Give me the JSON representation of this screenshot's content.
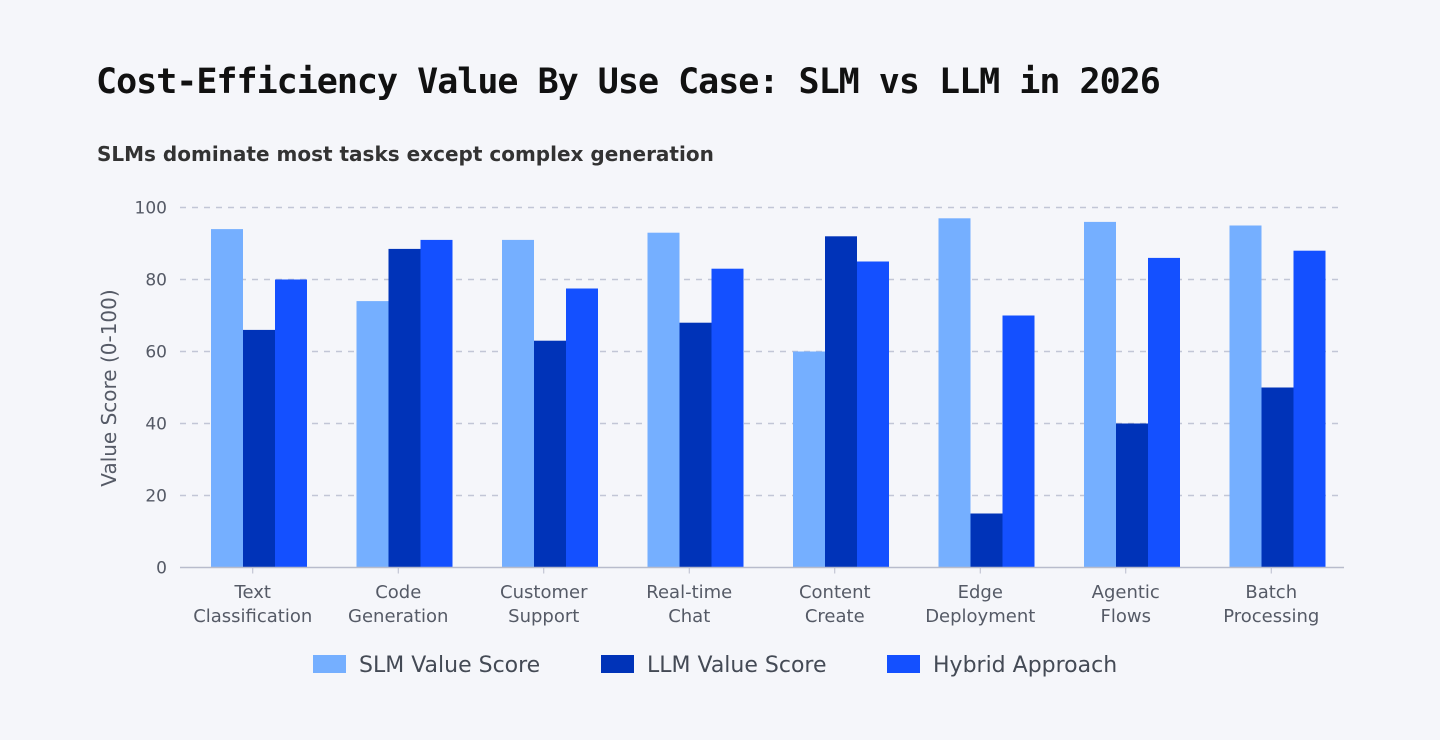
{
  "chart_data": {
    "type": "bar",
    "title": "Cost-Efficiency Value By Use Case: SLM vs LLM in 2026",
    "subtitle": "SLMs dominate most tasks except complex generation",
    "xlabel": "",
    "ylabel": "Value Score (0-100)",
    "ylim": [
      0,
      100
    ],
    "yticks": [
      0,
      20,
      40,
      60,
      80,
      100
    ],
    "grid": true,
    "legend": "bottom",
    "categories": [
      [
        "Text",
        "Classification"
      ],
      [
        "Code",
        "Generation"
      ],
      [
        "Customer",
        "Support"
      ],
      [
        "Real-time",
        "Chat"
      ],
      [
        "Content",
        "Create"
      ],
      [
        "Edge",
        "Deployment"
      ],
      [
        "Agentic",
        "Flows"
      ],
      [
        "Batch",
        "Processing"
      ]
    ],
    "series": [
      {
        "name": "SLM Value Score",
        "color": "#75afff",
        "values": [
          94,
          74,
          91,
          93,
          60,
          97,
          96,
          95
        ]
      },
      {
        "name": "LLM Value Score",
        "color": "#0033b8",
        "values": [
          66,
          88.5,
          63,
          68,
          92,
          15,
          40,
          50
        ]
      },
      {
        "name": "Hybrid Approach",
        "color": "#1450ff",
        "values": [
          80,
          91,
          77.5,
          83,
          85,
          70,
          86,
          88
        ]
      }
    ]
  }
}
